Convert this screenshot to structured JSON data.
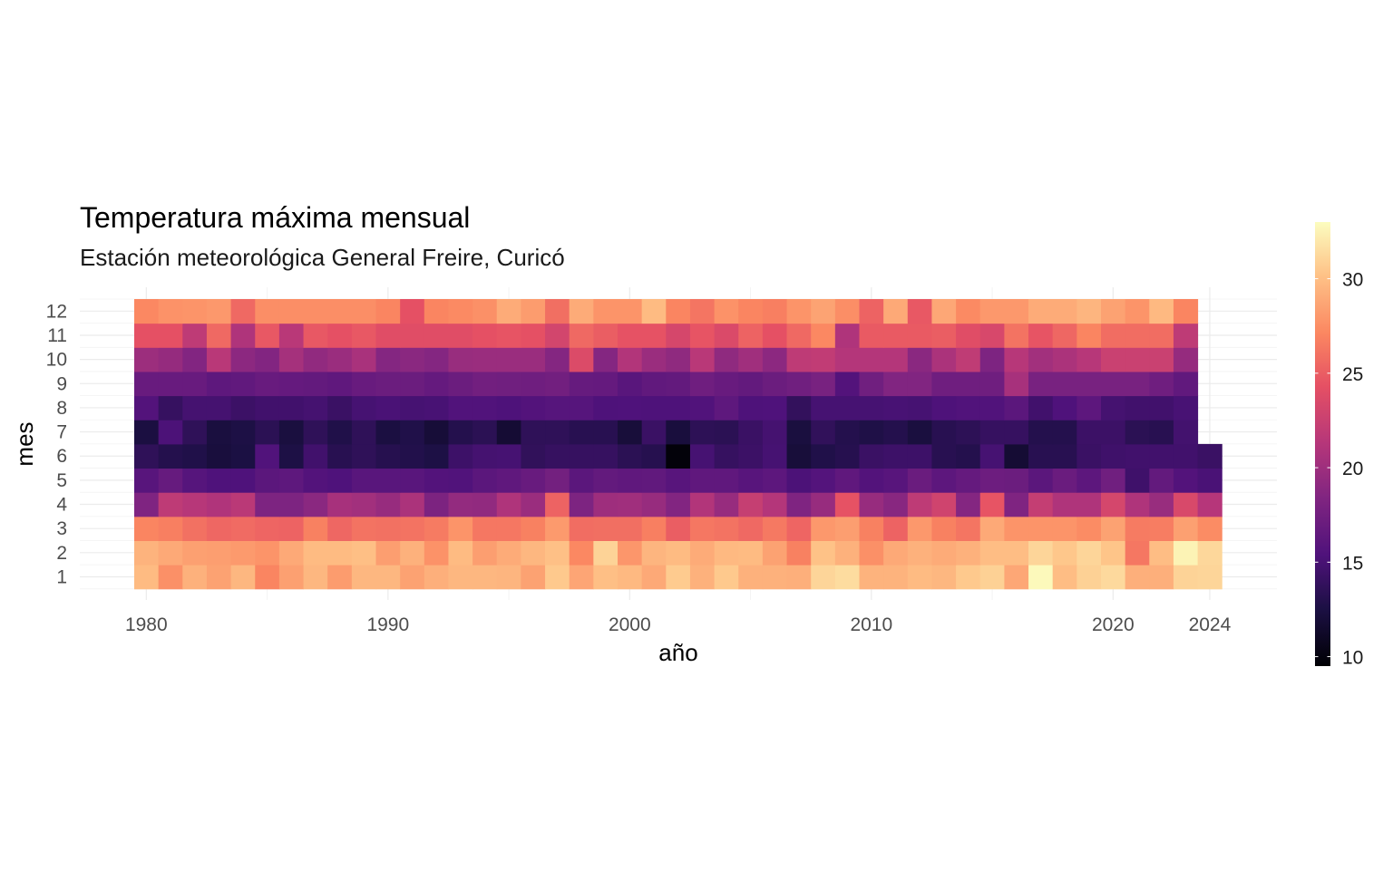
{
  "chart_data": {
    "type": "heatmap",
    "title": "Temperatura máxima mensual",
    "subtitle": "Estación meteorológica General Freire, Curicó",
    "xlabel": "año",
    "ylabel": "mes",
    "x_ticks": [
      1980,
      1990,
      2000,
      2010,
      2020,
      2024
    ],
    "y_ticks": [
      1,
      2,
      3,
      4,
      5,
      6,
      7,
      8,
      9,
      10,
      11,
      12
    ],
    "x_range": [
      1980,
      2024
    ],
    "months": [
      1,
      2,
      3,
      4,
      5,
      6,
      7,
      8,
      9,
      10,
      11,
      12
    ],
    "colorbar": {
      "min": 9.5,
      "max": 33,
      "ticks": [
        10,
        15,
        20,
        25,
        30
      ],
      "palette": "magma"
    },
    "grid": true,
    "legend_position": "right",
    "years": [
      1980,
      1981,
      1982,
      1983,
      1984,
      1985,
      1986,
      1987,
      1988,
      1989,
      1990,
      1991,
      1992,
      1993,
      1994,
      1995,
      1996,
      1997,
      1998,
      1999,
      2000,
      2001,
      2002,
      2003,
      2004,
      2005,
      2006,
      2007,
      2008,
      2009,
      2010,
      2011,
      2012,
      2013,
      2014,
      2015,
      2016,
      2017,
      2018,
      2019,
      2020,
      2021,
      2022,
      2023,
      2024
    ],
    "values": [
      [
        29.8,
        27.6,
        29.3,
        28.5,
        29.6,
        27.0,
        28.4,
        29.6,
        28.2,
        29.6,
        29.6,
        28.5,
        29.2,
        29.6,
        29.6,
        29.5,
        28.5,
        30.5,
        28.7,
        30.0,
        29.7,
        28.9,
        30.6,
        29.3,
        30.5,
        29.3,
        29.3,
        29.2,
        31.1,
        31.4,
        29.4,
        29.4,
        29.8,
        29.6,
        30.5,
        30.9,
        28.8,
        32.8,
        29.9,
        30.9,
        31.3,
        29.2,
        29.2,
        31.0,
        31.1
      ],
      [
        29.4,
        28.9,
        28.4,
        28.3,
        28.1,
        27.8,
        28.9,
        29.8,
        29.8,
        30.0,
        28.3,
        29.3,
        27.7,
        29.8,
        28.3,
        29.0,
        29.6,
        30.1,
        27.2,
        31.0,
        27.9,
        29.5,
        29.8,
        29.0,
        29.7,
        29.8,
        28.5,
        26.8,
        30.2,
        29.3,
        27.6,
        28.9,
        29.3,
        29.0,
        29.3,
        29.9,
        29.9,
        31.1,
        30.4,
        31.1,
        30.3,
        26.3,
        29.9,
        32.5,
        31.2
      ],
      [
        27.0,
        26.7,
        26.0,
        25.5,
        25.7,
        25.4,
        25.3,
        26.8,
        25.5,
        26.1,
        26.0,
        26.1,
        26.5,
        27.8,
        26.3,
        26.3,
        26.8,
        28.1,
        25.8,
        25.9,
        25.9,
        26.7,
        25.0,
        26.3,
        26.1,
        25.6,
        26.4,
        25.4,
        28.0,
        28.3,
        26.8,
        25.3,
        28.0,
        26.8,
        26.2,
        28.9,
        27.8,
        27.8,
        27.8,
        27.4,
        28.5,
        26.5,
        26.6,
        28.4,
        27.4
      ],
      [
        18.3,
        21.8,
        21.4,
        21.0,
        21.6,
        18.2,
        18.2,
        18.9,
        20.5,
        20.2,
        19.6,
        20.7,
        18.1,
        19.4,
        19.3,
        20.9,
        19.8,
        25.3,
        18.2,
        20.0,
        20.1,
        19.6,
        18.5,
        21.1,
        19.6,
        22.3,
        21.2,
        18.3,
        19.6,
        24.4,
        19.6,
        18.8,
        21.8,
        22.9,
        18.6,
        24.5,
        18.3,
        22.2,
        20.9,
        20.9,
        23.2,
        20.9,
        19.7,
        23.5,
        21.3
      ],
      [
        15.9,
        16.8,
        15.8,
        15.4,
        15.4,
        16.1,
        16.3,
        15.6,
        15.4,
        16.0,
        16.0,
        16.0,
        15.6,
        15.5,
        16.1,
        16.4,
        16.9,
        17.6,
        16.1,
        16.6,
        16.4,
        16.5,
        15.9,
        16.4,
        16.4,
        15.9,
        16.2,
        15.2,
        15.7,
        16.4,
        15.6,
        15.9,
        17.0,
        16.2,
        16.7,
        17.2,
        17.1,
        16.1,
        17.0,
        16.2,
        17.4,
        14.5,
        16.6,
        15.6,
        15.1
      ],
      [
        13.6,
        13.0,
        12.8,
        12.2,
        12.5,
        15.5,
        12.6,
        14.6,
        13.2,
        13.6,
        13.1,
        12.9,
        12.6,
        14.4,
        14.8,
        14.9,
        13.7,
        14.0,
        14.0,
        14.0,
        13.4,
        13.1,
        9.8,
        14.9,
        14.0,
        14.3,
        14.9,
        12.1,
        12.8,
        13.1,
        14.2,
        14.4,
        14.4,
        13.2,
        13.0,
        14.9,
        11.8,
        13.2,
        13.2,
        14.2,
        14.5,
        14.6,
        14.6,
        14.6,
        14.2
      ],
      [
        12.4,
        15.2,
        13.6,
        12.3,
        12.6,
        13.4,
        12.3,
        13.6,
        12.8,
        13.6,
        12.4,
        12.8,
        12.0,
        13.0,
        13.4,
        11.8,
        13.6,
        13.6,
        13.2,
        13.2,
        12.1,
        14.2,
        12.2,
        13.5,
        13.4,
        14.2,
        14.8,
        12.3,
        13.7,
        13.0,
        12.7,
        13.0,
        12.3,
        13.2,
        13.5,
        14.0,
        14.0,
        13.0,
        13.0,
        14.3,
        14.3,
        13.4,
        13.2,
        14.7,
        null
      ],
      [
        15.6,
        14.0,
        14.8,
        14.8,
        14.3,
        14.6,
        14.6,
        14.8,
        14.2,
        14.9,
        15.1,
        14.9,
        15.0,
        15.5,
        15.5,
        15.3,
        15.6,
        15.8,
        15.8,
        15.3,
        15.4,
        15.3,
        15.3,
        15.5,
        16.3,
        15.3,
        15.4,
        13.8,
        14.9,
        14.9,
        14.9,
        15.0,
        14.9,
        15.3,
        15.5,
        15.5,
        16.1,
        14.6,
        15.4,
        16.2,
        14.8,
        14.6,
        14.6,
        15.0,
        null
      ],
      [
        16.9,
        16.9,
        16.9,
        16.3,
        16.5,
        16.9,
        16.7,
        16.6,
        16.4,
        16.9,
        17.1,
        17.1,
        16.7,
        17.1,
        17.5,
        17.4,
        17.3,
        17.5,
        16.8,
        16.7,
        16.0,
        16.5,
        16.6,
        17.3,
        16.9,
        16.6,
        17.1,
        17.4,
        17.9,
        15.6,
        17.4,
        18.4,
        18.4,
        17.3,
        17.3,
        17.3,
        20.5,
        17.9,
        17.9,
        17.9,
        17.9,
        17.9,
        17.3,
        16.5,
        null
      ],
      [
        19.9,
        19.5,
        18.5,
        21.5,
        19.0,
        18.5,
        20.4,
        19.3,
        19.8,
        20.6,
        18.6,
        18.9,
        18.6,
        19.7,
        19.8,
        19.8,
        19.8,
        18.6,
        23.7,
        18.6,
        21.1,
        19.8,
        19.2,
        21.5,
        19.2,
        20.1,
        19.0,
        21.8,
        22.0,
        21.2,
        21.2,
        21.2,
        18.9,
        20.7,
        21.9,
        18.2,
        21.4,
        20.2,
        20.7,
        21.4,
        22.5,
        22.5,
        22.5,
        19.5,
        null
      ],
      [
        24.3,
        24.3,
        21.8,
        25.6,
        20.9,
        24.7,
        21.5,
        24.7,
        24.3,
        24.7,
        24.0,
        24.0,
        24.0,
        24.0,
        24.3,
        24.5,
        24.3,
        23.1,
        25.6,
        25.0,
        24.4,
        24.4,
        23.3,
        24.5,
        23.6,
        25.3,
        24.3,
        25.6,
        27.2,
        20.9,
        24.8,
        24.8,
        24.8,
        25.0,
        24.0,
        23.4,
        26.1,
        24.5,
        25.5,
        27.0,
        25.8,
        25.8,
        25.8,
        21.8,
        null
      ],
      [
        27.2,
        27.7,
        27.8,
        28.0,
        25.6,
        27.5,
        27.5,
        27.5,
        27.5,
        27.5,
        27.0,
        24.3,
        27.0,
        27.3,
        27.6,
        29.0,
        28.2,
        25.9,
        29.0,
        27.8,
        27.8,
        29.8,
        27.0,
        26.2,
        27.7,
        27.0,
        26.7,
        27.8,
        28.6,
        27.5,
        25.3,
        28.9,
        24.7,
        28.8,
        27.3,
        28.0,
        28.0,
        29.0,
        29.0,
        29.5,
        28.5,
        27.8,
        29.7,
        27.0,
        null
      ]
    ]
  }
}
